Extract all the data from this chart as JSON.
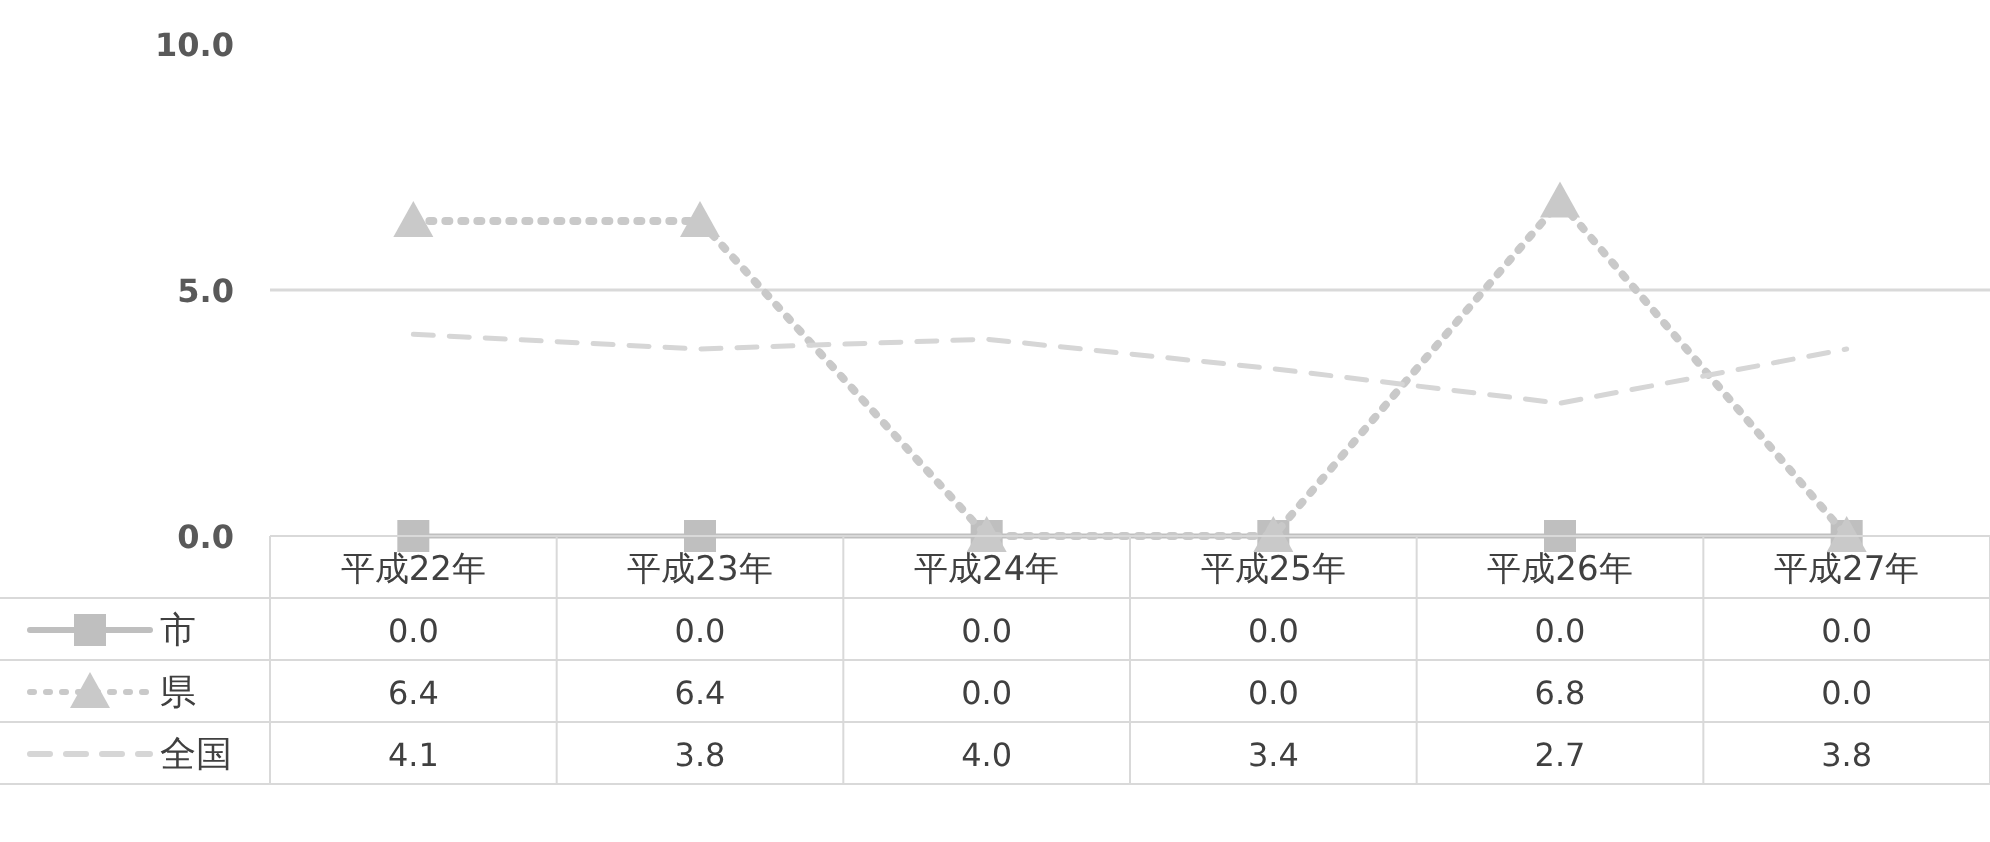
{
  "chart_data": {
    "type": "line",
    "categories": [
      "平成22年",
      "平成23年",
      "平成24年",
      "平成25年",
      "平成26年",
      "平成27年"
    ],
    "series": [
      {
        "name": "市",
        "color": "#bfbfbf",
        "values": [
          0.0,
          0.0,
          0.0,
          0.0,
          0.0,
          0.0
        ],
        "value_labels": [
          "0.0",
          "0.0",
          "0.0",
          "0.0",
          "0.0",
          "0.0"
        ],
        "marker": "square",
        "line_style": "solid"
      },
      {
        "name": "県",
        "color": "#c9c9c9",
        "values": [
          6.4,
          6.4,
          0.0,
          0.0,
          6.8,
          0.0
        ],
        "value_labels": [
          "6.4",
          "6.4",
          "0.0",
          "0.0",
          "6.8",
          "0.0"
        ],
        "marker": "triangle",
        "line_style": "dotted"
      },
      {
        "name": "全国",
        "color": "#d6d6d6",
        "values": [
          4.1,
          3.8,
          4.0,
          3.4,
          2.7,
          3.8
        ],
        "value_labels": [
          "4.1",
          "3.8",
          "4.0",
          "3.4",
          "2.7",
          "3.8"
        ],
        "marker": "none",
        "line_style": "dashed"
      }
    ],
    "ylim": [
      0,
      10
    ],
    "yticks": [
      {
        "value": 0,
        "label": "0.0"
      },
      {
        "value": 5,
        "label": "5.0"
      },
      {
        "value": 10,
        "label": "10.0"
      }
    ],
    "ref_lines": [
      {
        "axis": "y",
        "value": 5,
        "color": "#d9d9d9",
        "line_style": "solid"
      }
    ],
    "legend": "left"
  }
}
